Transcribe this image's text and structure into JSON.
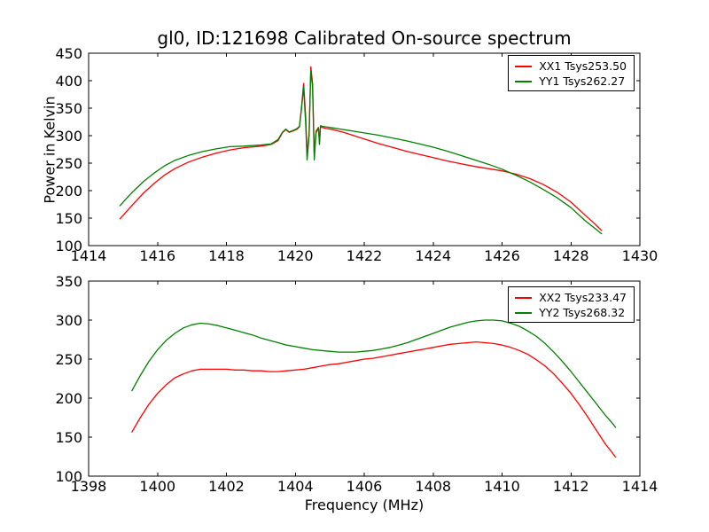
{
  "figure": {
    "title": "gl0, ID:121698 Calibrated On-source spectrum",
    "xlabel": "Frequency (MHz)",
    "ylabel": "Power in Kelvin",
    "background_color": "#ffffff",
    "axis_color": "#000000"
  },
  "chart_data": [
    {
      "type": "line",
      "title": "gl0, ID:121698 Calibrated On-source spectrum",
      "xlabel": "",
      "ylabel": "Power in Kelvin",
      "xlim": [
        1414,
        1430
      ],
      "ylim": [
        100,
        450
      ],
      "xticks": [
        1414,
        1416,
        1418,
        1420,
        1422,
        1424,
        1426,
        1428,
        1430
      ],
      "yticks": [
        100,
        150,
        200,
        250,
        300,
        350,
        400,
        450
      ],
      "grid": false,
      "legend_position": "upper right",
      "series": [
        {
          "name": "XX1 Tsys253.50",
          "color": "#ff0000",
          "x": [
            1414.9,
            1415.1,
            1415.3,
            1415.6,
            1415.9,
            1416.2,
            1416.5,
            1416.9,
            1417.3,
            1417.7,
            1418.1,
            1418.5,
            1419.0,
            1419.3,
            1419.5,
            1419.62,
            1419.72,
            1419.82,
            1419.95,
            1420.05,
            1420.12,
            1420.18,
            1420.24,
            1420.3,
            1420.34,
            1420.4,
            1420.45,
            1420.5,
            1420.55,
            1420.6,
            1420.67,
            1420.7,
            1420.73,
            1420.78,
            1420.9,
            1421.1,
            1421.4,
            1421.7,
            1422.0,
            1422.4,
            1422.8,
            1423.2,
            1423.6,
            1424.0,
            1424.4,
            1424.8,
            1425.2,
            1425.6,
            1426.0,
            1426.4,
            1426.8,
            1427.2,
            1427.6,
            1428.0,
            1428.4,
            1428.7,
            1428.9
          ],
          "y": [
            148,
            162,
            176,
            196,
            213,
            228,
            240,
            252,
            261,
            268,
            274,
            278,
            281,
            284,
            291,
            305,
            311,
            306,
            309,
            312,
            316,
            352,
            395,
            335,
            266,
            305,
            425,
            395,
            268,
            308,
            315,
            288,
            316,
            315,
            313,
            311,
            306,
            300,
            294,
            286,
            279,
            272,
            266,
            260,
            254,
            249,
            244,
            240,
            236,
            230,
            222,
            211,
            197,
            179,
            156,
            139,
            127
          ]
        },
        {
          "name": "YY1 Tsys262.27",
          "color": "#008000",
          "x": [
            1414.9,
            1415.1,
            1415.3,
            1415.6,
            1415.9,
            1416.2,
            1416.5,
            1416.9,
            1417.3,
            1417.7,
            1418.1,
            1418.5,
            1419.0,
            1419.3,
            1419.5,
            1419.62,
            1419.72,
            1419.82,
            1419.95,
            1420.05,
            1420.12,
            1420.18,
            1420.24,
            1420.3,
            1420.34,
            1420.4,
            1420.45,
            1420.5,
            1420.55,
            1420.6,
            1420.67,
            1420.7,
            1420.73,
            1420.78,
            1420.9,
            1421.1,
            1421.4,
            1421.7,
            1422.0,
            1422.4,
            1422.8,
            1423.2,
            1423.6,
            1424.0,
            1424.4,
            1424.8,
            1425.2,
            1425.6,
            1426.0,
            1426.4,
            1426.8,
            1427.2,
            1427.6,
            1428.0,
            1428.4,
            1428.7,
            1428.9
          ],
          "y": [
            172,
            186,
            199,
            217,
            232,
            245,
            255,
            264,
            271,
            276,
            280,
            281,
            283,
            285,
            293,
            306,
            312,
            307,
            310,
            313,
            317,
            348,
            388,
            322,
            256,
            300,
            418,
            388,
            256,
            305,
            314,
            284,
            318,
            317,
            316,
            314,
            311,
            308,
            305,
            301,
            296,
            291,
            285,
            279,
            272,
            264,
            256,
            248,
            239,
            228,
            216,
            202,
            187,
            169,
            146,
            131,
            121
          ]
        }
      ]
    },
    {
      "type": "line",
      "title": "",
      "xlabel": "Frequency (MHz)",
      "ylabel": "",
      "xlim": [
        1398,
        1414
      ],
      "ylim": [
        100,
        350
      ],
      "xticks": [
        1398,
        1400,
        1402,
        1404,
        1406,
        1408,
        1410,
        1412,
        1414
      ],
      "yticks": [
        100,
        150,
        200,
        250,
        300,
        350
      ],
      "grid": false,
      "legend_position": "upper right",
      "series": [
        {
          "name": "XX2 Tsys233.47",
          "color": "#ff0000",
          "x": [
            1399.25,
            1399.5,
            1399.75,
            1400.0,
            1400.25,
            1400.5,
            1400.75,
            1401.0,
            1401.25,
            1401.5,
            1401.75,
            1402.0,
            1402.25,
            1402.5,
            1402.75,
            1403.0,
            1403.25,
            1403.5,
            1403.75,
            1404.0,
            1404.25,
            1404.5,
            1404.75,
            1405.0,
            1405.25,
            1405.5,
            1405.75,
            1406.0,
            1406.25,
            1406.5,
            1406.75,
            1407.0,
            1407.25,
            1407.5,
            1407.75,
            1408.0,
            1408.25,
            1408.5,
            1408.75,
            1409.0,
            1409.25,
            1409.5,
            1409.75,
            1410.0,
            1410.25,
            1410.5,
            1410.75,
            1411.0,
            1411.25,
            1411.5,
            1411.75,
            1412.0,
            1412.25,
            1412.5,
            1412.75,
            1413.0,
            1413.2,
            1413.3
          ],
          "y": [
            156,
            175,
            192,
            206,
            217,
            226,
            231,
            235,
            237,
            237,
            237,
            237,
            236,
            236,
            235,
            235,
            234,
            234,
            235,
            236,
            237,
            239,
            241,
            243,
            244,
            246,
            248,
            250,
            251,
            253,
            255,
            257,
            259,
            261,
            263,
            265,
            267,
            269,
            270,
            271,
            272,
            271,
            270,
            268,
            265,
            261,
            256,
            249,
            241,
            231,
            219,
            206,
            191,
            175,
            158,
            141,
            130,
            124
          ]
        },
        {
          "name": "YY2 Tsys268.32",
          "color": "#008000",
          "x": [
            1399.25,
            1399.5,
            1399.75,
            1400.0,
            1400.25,
            1400.5,
            1400.75,
            1401.0,
            1401.25,
            1401.5,
            1401.75,
            1402.0,
            1402.25,
            1402.5,
            1402.75,
            1403.0,
            1403.25,
            1403.5,
            1403.75,
            1404.0,
            1404.25,
            1404.5,
            1404.75,
            1405.0,
            1405.25,
            1405.5,
            1405.75,
            1406.0,
            1406.25,
            1406.5,
            1406.75,
            1407.0,
            1407.25,
            1407.5,
            1407.75,
            1408.0,
            1408.25,
            1408.5,
            1408.75,
            1409.0,
            1409.25,
            1409.5,
            1409.75,
            1410.0,
            1410.25,
            1410.5,
            1410.75,
            1411.0,
            1411.25,
            1411.5,
            1411.75,
            1412.0,
            1412.25,
            1412.5,
            1412.75,
            1413.0,
            1413.2,
            1413.3
          ],
          "y": [
            209,
            229,
            247,
            262,
            274,
            283,
            290,
            294,
            296,
            295,
            293,
            290,
            287,
            284,
            281,
            277,
            274,
            271,
            268,
            266,
            264,
            262,
            261,
            260,
            259,
            259,
            259,
            260,
            261,
            263,
            265,
            268,
            271,
            275,
            279,
            283,
            287,
            291,
            294,
            297,
            299,
            300,
            300,
            299,
            296,
            292,
            286,
            279,
            270,
            259,
            247,
            234,
            220,
            206,
            192,
            178,
            168,
            162
          ]
        }
      ]
    }
  ]
}
